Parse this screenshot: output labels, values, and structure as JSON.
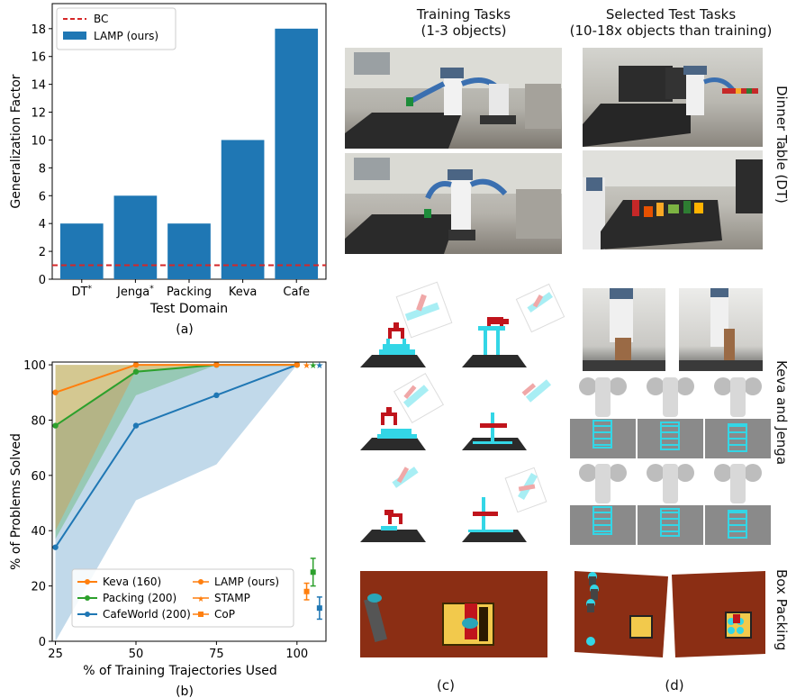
{
  "chart_data": [
    {
      "type": "bar",
      "categories": [
        "DT*",
        "Jenga*",
        "Packing",
        "Keva",
        "Cafe"
      ],
      "series": [
        {
          "name": "LAMP (ours)",
          "values": [
            4,
            6,
            4,
            10,
            18
          ],
          "color": "#1f77b4"
        }
      ],
      "reference_line": {
        "name": "BC",
        "value": 1,
        "color": "#d62728",
        "style": "dashed"
      },
      "title": "",
      "xlabel": "Test Domain",
      "ylabel": "Generalization Factor",
      "ylim": [
        0,
        19.8
      ],
      "yticks": [
        0,
        2,
        4,
        6,
        8,
        10,
        12,
        14,
        16,
        18
      ],
      "legend": "top-left",
      "grid": false,
      "caption": "(a)"
    },
    {
      "type": "line",
      "x": [
        25,
        50,
        75,
        100
      ],
      "series": [
        {
          "name": "Keva (160)",
          "color": "#ff7f0e",
          "points": [
            [
              25,
              90
            ],
            [
              50,
              100
            ],
            [
              75,
              100
            ],
            [
              100,
              100
            ]
          ],
          "band_low": [
            40,
            98,
            100,
            100
          ],
          "band_high": [
            100,
            100,
            100,
            100
          ]
        },
        {
          "name": "Packing (200)",
          "color": "#2ca02c",
          "points": [
            [
              25,
              78
            ],
            [
              50,
              97.5
            ],
            [
              75,
              100
            ],
            [
              100,
              100
            ]
          ],
          "band_low": [
            37,
            89,
            100,
            100
          ],
          "band_high": [
            100,
            100,
            100,
            100
          ]
        },
        {
          "name": "CafeWorld (200)",
          "color": "#1f77b4",
          "points": [
            [
              25,
              34
            ],
            [
              50,
              78
            ],
            [
              75,
              89
            ],
            [
              100,
              100
            ]
          ],
          "band_low": [
            0,
            51,
            64,
            100
          ],
          "band_high": [
            78,
            98,
            100,
            100
          ]
        }
      ],
      "methods": [
        {
          "name": "LAMP (ours)",
          "marker": "circle"
        },
        {
          "name": "STAMP",
          "marker": "star"
        },
        {
          "name": "CoP",
          "marker": "square"
        }
      ],
      "baselines": [
        {
          "series": "Keva (160)",
          "method": "STAMP",
          "x": 103,
          "y": 100
        },
        {
          "series": "Packing (200)",
          "method": "STAMP",
          "x": 105,
          "y": 100
        },
        {
          "series": "CafeWorld (200)",
          "method": "STAMP",
          "x": 107,
          "y": 100
        },
        {
          "series": "Keva (160)",
          "method": "CoP",
          "x": 103,
          "y": 18,
          "err": 3
        },
        {
          "series": "Packing (200)",
          "method": "CoP",
          "x": 105,
          "y": 25,
          "err": 5
        },
        {
          "series": "CafeWorld (200)",
          "method": "CoP",
          "x": 107,
          "y": 12,
          "err": 4
        }
      ],
      "xlabel": "% of Training Trajectories Used",
      "ylabel": "% of Problems Solved",
      "xlim": [
        24,
        109
      ],
      "ylim": [
        0,
        101
      ],
      "xticks": [
        25,
        50,
        75,
        100
      ],
      "yticks": [
        0,
        20,
        40,
        60,
        80,
        100
      ],
      "legend": "bottom-center",
      "grid": false,
      "caption": "(b)"
    }
  ],
  "panel_c": {
    "header_line1": "Training Tasks",
    "header_line2": "(1-3 objects)",
    "caption": "(c)"
  },
  "panel_d": {
    "header_line1": "Selected Test Tasks",
    "header_line2": "(10-18x objects than training)",
    "caption": "(d)"
  },
  "row_labels": {
    "dinner_table": "Dinner Table (DT)",
    "keva_jenga": "Keva and Jenga",
    "box_packing": "Box Packing"
  },
  "colors": {
    "blue": "#1f77b4",
    "orange": "#ff7f0e",
    "green": "#2ca02c",
    "red": "#d62728",
    "cyan": "#33d6e6",
    "gripper": "#c0141c",
    "box_floor": "#8b2e14",
    "box_yellow": "#f2c94c"
  }
}
